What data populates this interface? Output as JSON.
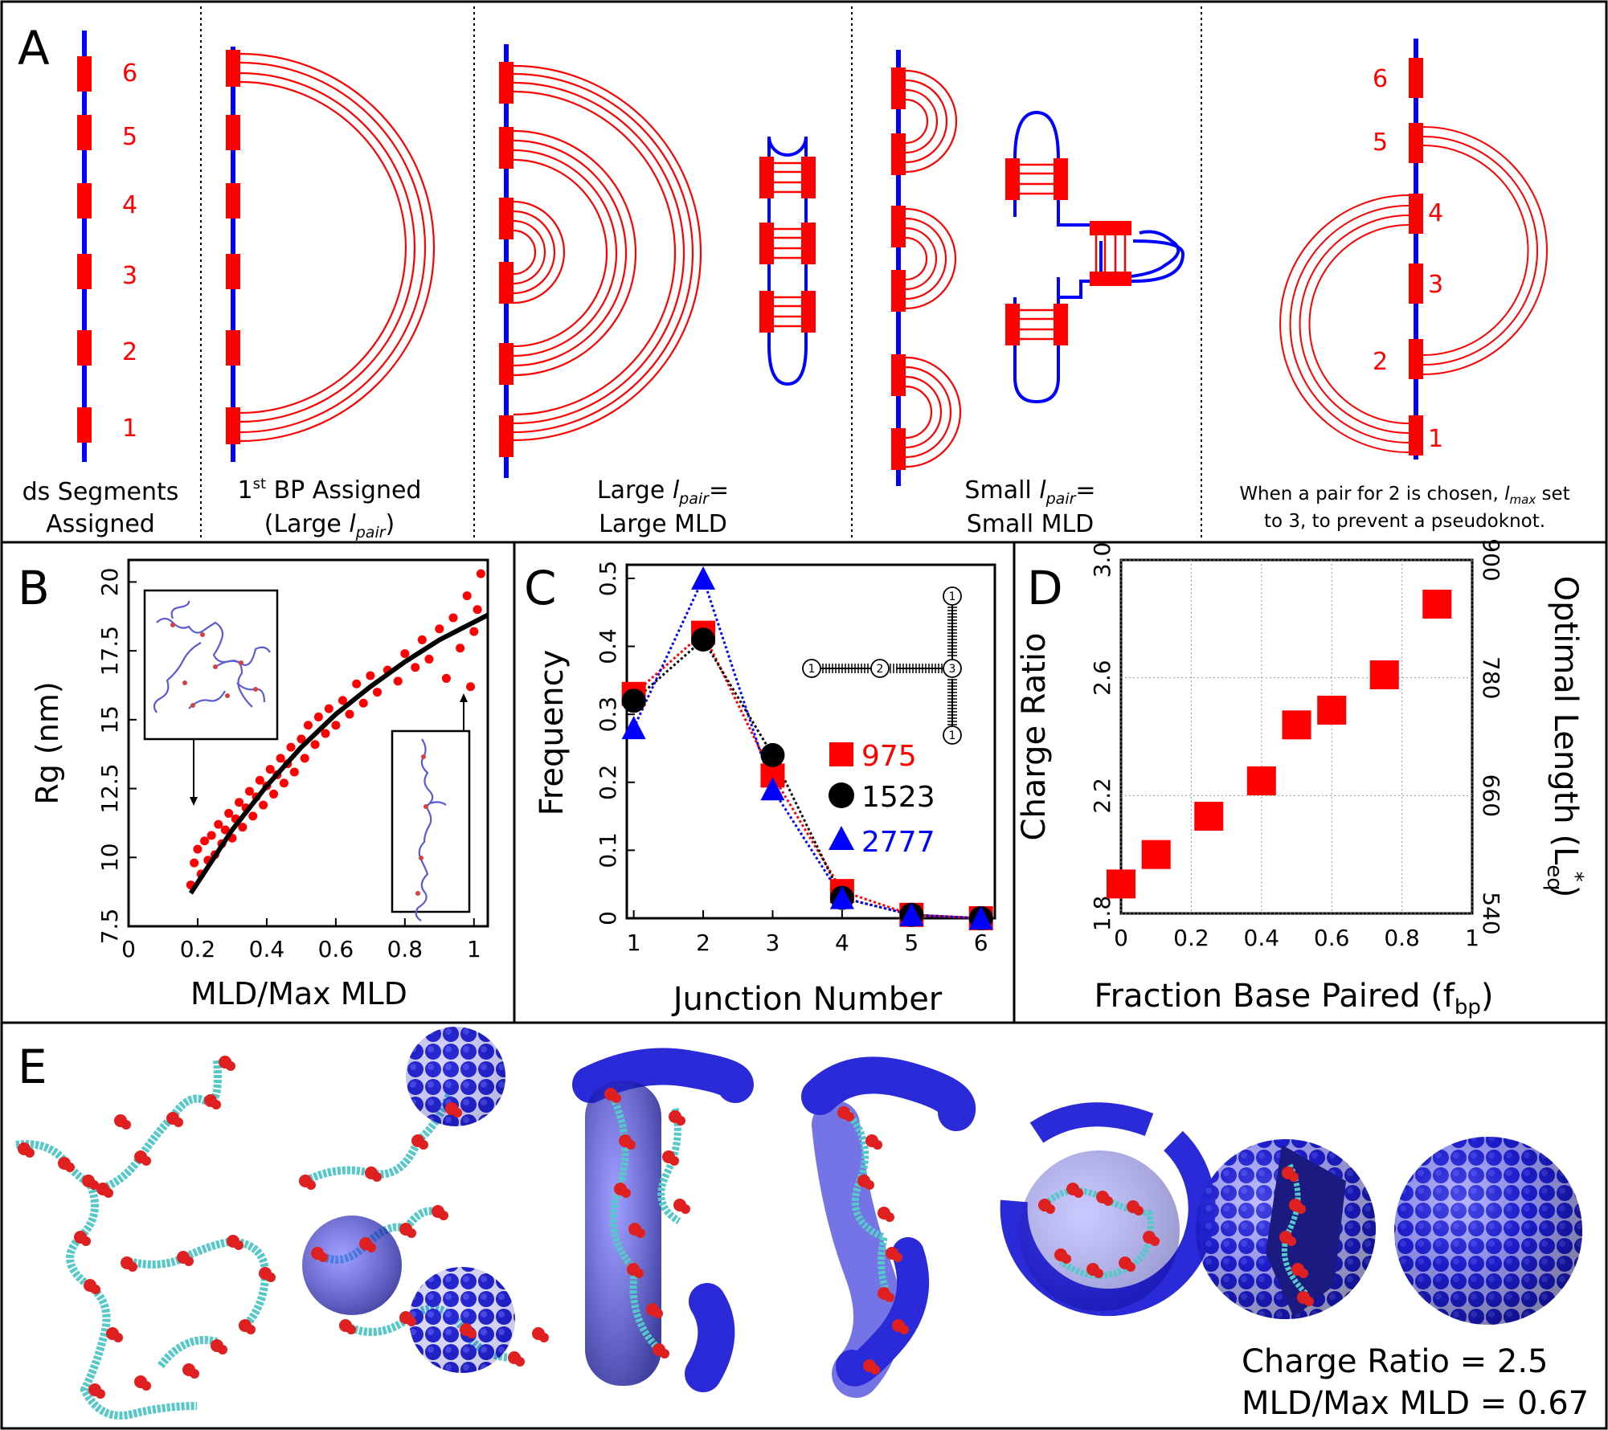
{
  "panel_letters": {
    "a": "A",
    "b": "B",
    "c": "C",
    "d": "D",
    "e": "E"
  },
  "panel_a": {
    "segment_numbers": [
      "1",
      "2",
      "3",
      "4",
      "5",
      "6"
    ],
    "cap1_l1": "ds Segments",
    "cap1_l2": "Assigned",
    "cap2_l1_pre": "1",
    "cap2_l1_sup": "st",
    "cap2_l1_post": " BP Assigned",
    "cap2_l2_pre": "(Large ",
    "cap2_l2_it": "l",
    "cap2_l2_sub": "pair",
    "cap2_l2_post": ")",
    "cap3_l1_pre": "Large ",
    "cap3_l1_it": "l",
    "cap3_l1_sub": "pair",
    "cap3_l1_post": "=",
    "cap3_l2": "Large MLD",
    "cap4_l1_pre": "Small ",
    "cap4_l1_it": "l",
    "cap4_l1_sub": "pair",
    "cap4_l1_post": "=",
    "cap4_l2": "Small MLD",
    "cap5_l1_pre": "When a pair for 2 is chosen, ",
    "cap5_l1_it": "l",
    "cap5_l1_sub": "max",
    "cap5_l1_post": " set",
    "cap5_l2": "to 3, to prevent a pseudoknot."
  },
  "panel_b": {
    "chart_data": {
      "type": "scatter",
      "xlabel": "MLD/Max MLD",
      "ylabel": "Rg (nm)",
      "xlim": [
        0,
        1.04
      ],
      "ylim": [
        7.5,
        20.8
      ],
      "xticks": [
        "0",
        "0.2",
        "0.4",
        "0.6",
        "0.8",
        "1"
      ],
      "yticks": [
        "7.5",
        "10",
        "12.5",
        "15",
        "17.5",
        "20"
      ],
      "fit_curve": {
        "x": [
          0.18,
          0.3,
          0.4,
          0.5,
          0.6,
          0.7,
          0.8,
          0.9,
          1.04
        ],
        "y": [
          8.7,
          11.0,
          12.6,
          14.0,
          15.2,
          16.2,
          17.1,
          17.9,
          18.8
        ]
      },
      "points": [
        [
          0.18,
          9.0
        ],
        [
          0.19,
          9.8
        ],
        [
          0.2,
          10.3
        ],
        [
          0.21,
          9.4
        ],
        [
          0.22,
          10.6
        ],
        [
          0.23,
          9.9
        ],
        [
          0.24,
          10.8
        ],
        [
          0.25,
          10.1
        ],
        [
          0.26,
          11.2
        ],
        [
          0.27,
          10.5
        ],
        [
          0.28,
          11.0
        ],
        [
          0.29,
          11.6
        ],
        [
          0.3,
          10.7
        ],
        [
          0.31,
          11.4
        ],
        [
          0.32,
          12.0
        ],
        [
          0.33,
          11.1
        ],
        [
          0.34,
          11.8
        ],
        [
          0.35,
          12.4
        ],
        [
          0.36,
          11.5
        ],
        [
          0.37,
          12.2
        ],
        [
          0.38,
          12.8
        ],
        [
          0.39,
          11.9
        ],
        [
          0.4,
          12.6
        ],
        [
          0.41,
          13.2
        ],
        [
          0.42,
          12.3
        ],
        [
          0.43,
          13.0
        ],
        [
          0.44,
          13.6
        ],
        [
          0.45,
          12.7
        ],
        [
          0.46,
          13.4
        ],
        [
          0.47,
          14.0
        ],
        [
          0.48,
          13.1
        ],
        [
          0.5,
          14.3
        ],
        [
          0.51,
          13.6
        ],
        [
          0.52,
          14.8
        ],
        [
          0.54,
          14.1
        ],
        [
          0.55,
          15.1
        ],
        [
          0.57,
          14.5
        ],
        [
          0.58,
          15.4
        ],
        [
          0.6,
          14.8
        ],
        [
          0.62,
          15.7
        ],
        [
          0.64,
          15.2
        ],
        [
          0.66,
          16.3
        ],
        [
          0.68,
          15.6
        ],
        [
          0.7,
          16.6
        ],
        [
          0.72,
          16.0
        ],
        [
          0.75,
          16.8
        ],
        [
          0.78,
          16.4
        ],
        [
          0.8,
          17.4
        ],
        [
          0.83,
          16.9
        ],
        [
          0.85,
          17.9
        ],
        [
          0.87,
          17.2
        ],
        [
          0.9,
          18.3
        ],
        [
          0.92,
          16.5
        ],
        [
          0.94,
          18.7
        ],
        [
          0.96,
          17.6
        ],
        [
          0.98,
          19.5
        ],
        [
          1.0,
          18.2
        ],
        [
          1.02,
          20.3
        ],
        [
          0.99,
          16.2
        ],
        [
          1.01,
          19.0
        ]
      ]
    }
  },
  "panel_c": {
    "chart_data": {
      "type": "line",
      "xlabel": "Junction Number",
      "ylabel": "Frequency",
      "xlim": [
        0.9,
        6.2
      ],
      "ylim": [
        0,
        0.52
      ],
      "xticks": [
        "1",
        "2",
        "3",
        "4",
        "5",
        "6"
      ],
      "yticks": [
        "0",
        "0.1",
        "0.2",
        "0.3",
        "0.4",
        "0.5"
      ],
      "x": [
        1,
        2,
        3,
        4,
        5,
        6
      ],
      "series": [
        {
          "name": "975",
          "values": [
            0.33,
            0.42,
            0.21,
            0.04,
            0.005,
            0.0
          ],
          "color": "#ff0000",
          "marker": "square"
        },
        {
          "name": "1523",
          "values": [
            0.32,
            0.41,
            0.24,
            0.03,
            0.005,
            0.0
          ],
          "color": "#000000",
          "marker": "circle"
        },
        {
          "name": "2777",
          "values": [
            0.28,
            0.5,
            0.19,
            0.03,
            0.005,
            0.0
          ],
          "color": "#0000ff",
          "marker": "triangle"
        }
      ],
      "inset_nodes": [
        "1",
        "2",
        "3",
        "1",
        "1"
      ]
    }
  },
  "panel_d": {
    "chart_data": {
      "type": "scatter",
      "xlabel_pre": "Fraction Base Paired (f",
      "xlabel_sub": "bp",
      "xlabel_post": ")",
      "ylabel": "Charge Ratio",
      "y2label_pre": "Optimal Length (L",
      "y2label_sub": "eq",
      "y2label_sup": "*",
      "y2label_post": ")",
      "xlim": [
        0,
        1
      ],
      "ylim": [
        1.8,
        3.0
      ],
      "xticks": [
        "0",
        "0.2",
        "0.4",
        "0.6",
        "0.8",
        "1"
      ],
      "yticks": [
        "1.8",
        "2.2",
        "2.6",
        "3.0"
      ],
      "y2ticks": [
        "540",
        "660",
        "780",
        "900"
      ],
      "x": [
        0.0,
        0.1,
        0.25,
        0.4,
        0.5,
        0.6,
        0.75,
        0.9
      ],
      "values": [
        1.9,
        2.0,
        2.13,
        2.25,
        2.44,
        2.49,
        2.61,
        2.85
      ]
    }
  },
  "panel_e": {
    "caption_l1": "Charge Ratio = 2.5",
    "caption_l2": "MLD/Max MLD = 0.67"
  }
}
